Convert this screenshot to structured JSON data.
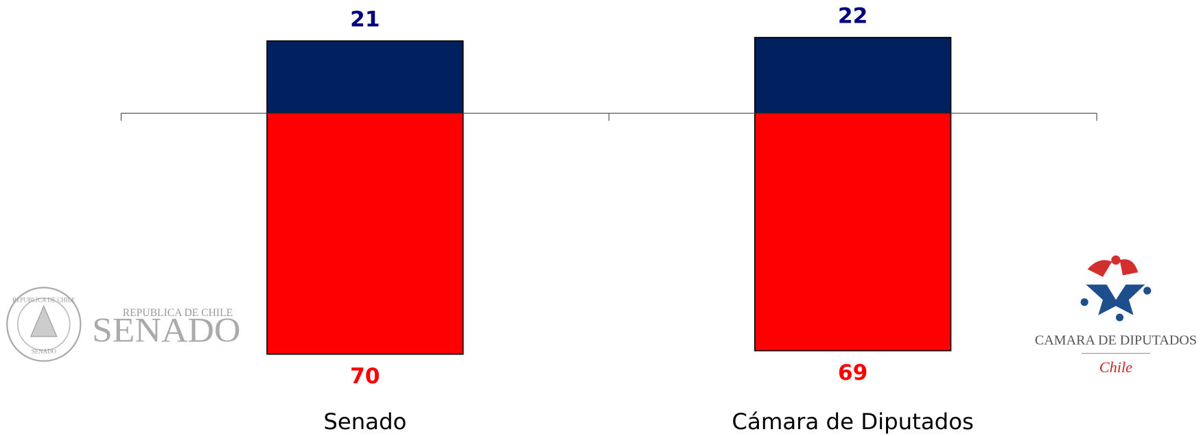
{
  "chart_data": {
    "type": "bar",
    "layout": "diverging",
    "categories": [
      "Senado",
      "Cámara de Diputados"
    ],
    "series": [
      {
        "color": "#002060",
        "label_color": "#000080",
        "values": [
          21,
          22
        ]
      },
      {
        "color": "#ff0000",
        "label_color": "#ff0000",
        "values": [
          70,
          69
        ]
      }
    ]
  },
  "logos": {
    "senado": {
      "top": "REPUBLICA DE CHILE",
      "name": "SENADO"
    },
    "camara": {
      "name": "CAMARA DE DIPUTADOS",
      "country": "Chile"
    }
  }
}
